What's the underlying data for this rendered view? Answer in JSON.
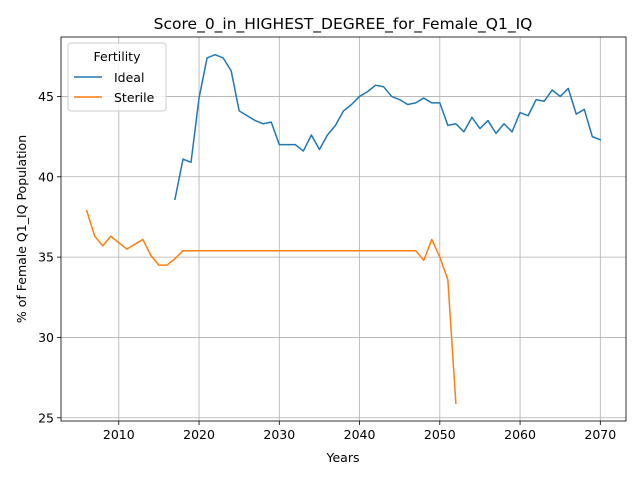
{
  "chart_data": {
    "type": "line",
    "title": "Score_0_in_HIGHEST_DEGREE_for_Female_Q1_IQ",
    "xlabel": "Years",
    "ylabel": "% of Female Q1_IQ Population",
    "xlim": [
      2002.8,
      2073.2
    ],
    "ylim": [
      24.8,
      48.7
    ],
    "xticks": [
      2010,
      2020,
      2030,
      2040,
      2050,
      2060,
      2070
    ],
    "yticks": [
      25,
      30,
      35,
      40,
      45
    ],
    "grid": true,
    "legend": {
      "title": "Fertility",
      "placement": "top-left"
    },
    "series": [
      {
        "name": "Ideal",
        "color": "#1f77b4",
        "x": [
          2017,
          2018,
          2019,
          2020,
          2021,
          2022,
          2023,
          2024,
          2025,
          2026,
          2027,
          2028,
          2029,
          2030,
          2031,
          2032,
          2033,
          2034,
          2035,
          2036,
          2037,
          2038,
          2039,
          2040,
          2041,
          2042,
          2043,
          2044,
          2045,
          2046,
          2047,
          2048,
          2049,
          2050,
          2051,
          2052,
          2053,
          2054,
          2055,
          2056,
          2057,
          2058,
          2059,
          2060,
          2061,
          2062,
          2063,
          2064,
          2065,
          2066,
          2067,
          2068,
          2069,
          2070
        ],
        "y": [
          38.6,
          41.1,
          40.9,
          44.9,
          47.4,
          47.6,
          47.4,
          46.6,
          44.1,
          43.8,
          43.5,
          43.3,
          43.4,
          42.0,
          42.0,
          42.0,
          41.6,
          42.6,
          41.7,
          42.6,
          43.2,
          44.1,
          44.5,
          45.0,
          45.3,
          45.7,
          45.6,
          45.0,
          44.8,
          44.5,
          44.6,
          44.9,
          44.6,
          44.6,
          43.2,
          43.3,
          42.8,
          43.7,
          43.0,
          43.5,
          42.7,
          43.3,
          42.8,
          44.0,
          43.8,
          44.8,
          44.7,
          45.4,
          45.0,
          45.5,
          43.9,
          44.2,
          42.5,
          42.3
        ]
      },
      {
        "name": "Sterile",
        "color": "#ff7f0e",
        "x": [
          2006,
          2007,
          2008,
          2009,
          2010,
          2011,
          2012,
          2013,
          2014,
          2015,
          2016,
          2017,
          2018,
          2019,
          2020,
          2021,
          2022,
          2023,
          2024,
          2025,
          2026,
          2027,
          2028,
          2029,
          2030,
          2031,
          2032,
          2033,
          2034,
          2035,
          2036,
          2037,
          2038,
          2039,
          2040,
          2041,
          2042,
          2043,
          2044,
          2045,
          2046,
          2047,
          2048,
          2049,
          2050,
          2051,
          2052
        ],
        "y": [
          37.9,
          36.3,
          35.7,
          36.3,
          35.9,
          35.5,
          35.8,
          36.1,
          35.1,
          34.5,
          34.5,
          34.9,
          35.4,
          35.4,
          35.4,
          35.4,
          35.4,
          35.4,
          35.4,
          35.4,
          35.4,
          35.4,
          35.4,
          35.4,
          35.4,
          35.4,
          35.4,
          35.4,
          35.4,
          35.4,
          35.4,
          35.4,
          35.4,
          35.4,
          35.4,
          35.4,
          35.4,
          35.4,
          35.4,
          35.4,
          35.4,
          35.4,
          34.8,
          36.1,
          35.0,
          33.6,
          25.9
        ]
      }
    ]
  }
}
